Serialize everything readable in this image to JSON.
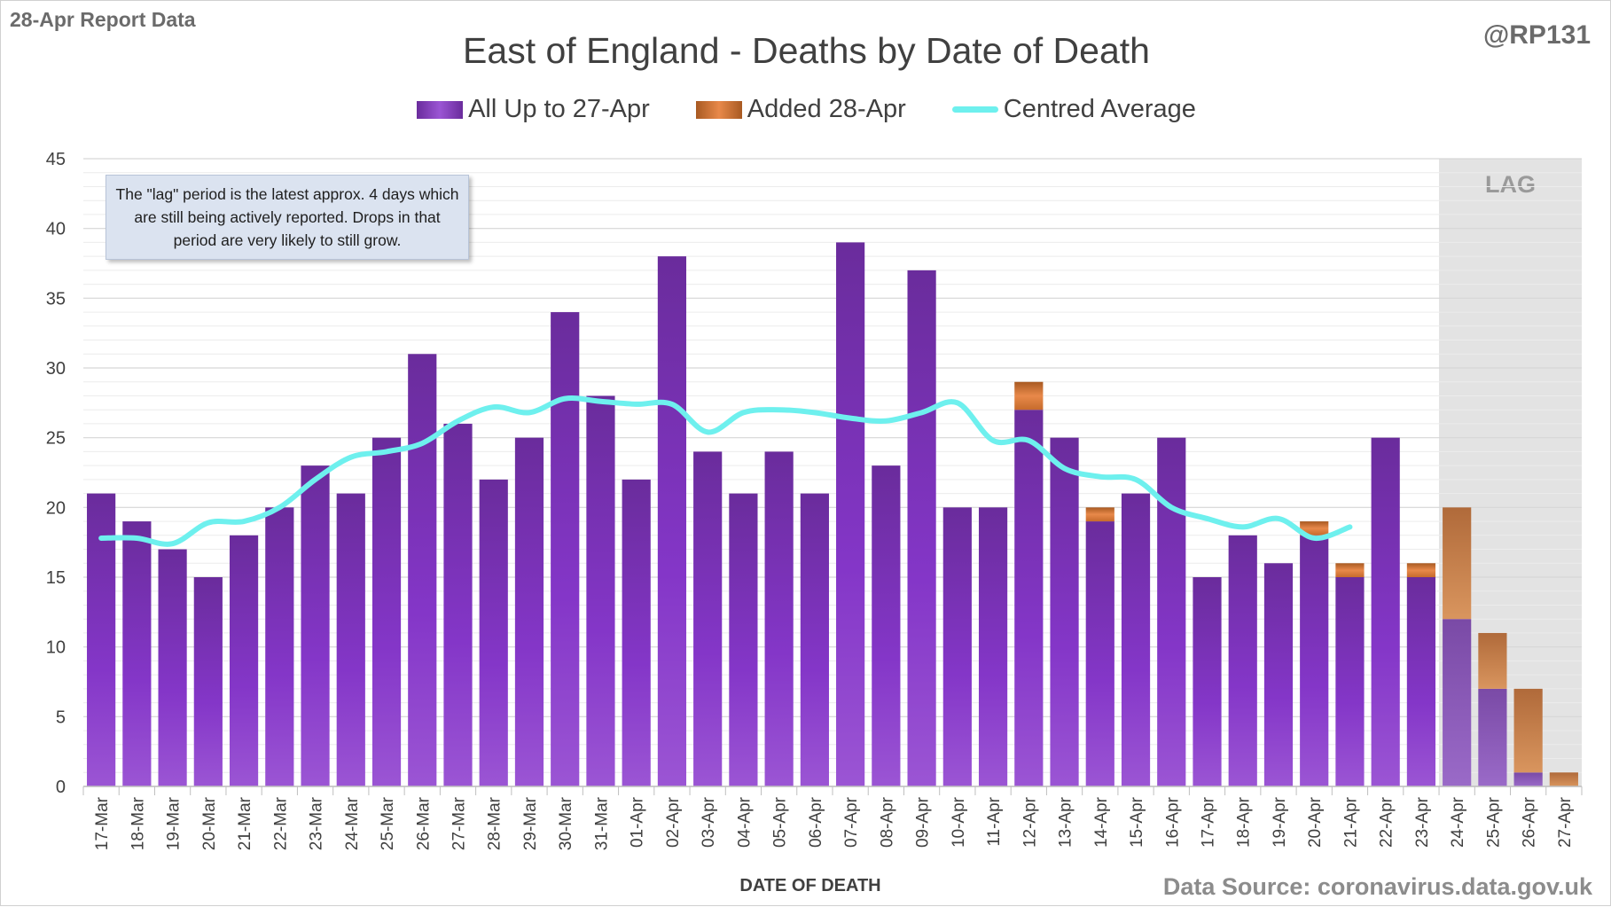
{
  "header": {
    "report_label": "28-Apr Report Data",
    "handle": "@RP131"
  },
  "footer": {
    "source": "Data Source: coronavirus.data.gov.uk"
  },
  "note": {
    "text": "The \"lag\" period is the latest approx. 4 days which are still being actively reported.  Drops in that period are very likely to still grow."
  },
  "colors": {
    "all_up_to": "#7030a0",
    "added": "#d9782c",
    "average": "#6ef0ee",
    "lag_shade": "#e3e3e3"
  },
  "chart_data": {
    "type": "bar",
    "title": "East of England - Deaths by Date of Death",
    "xlabel": "DATE OF DEATH",
    "ylabel": "",
    "ylim": [
      0,
      45
    ],
    "yticks": [
      0,
      5,
      10,
      15,
      20,
      25,
      30,
      35,
      40,
      45
    ],
    "stacked": true,
    "grid": true,
    "legend_position": "top-center",
    "lag_label": "LAG",
    "lag_categories": [
      "24-Apr",
      "25-Apr",
      "26-Apr",
      "27-Apr"
    ],
    "categories": [
      "17-Mar",
      "18-Mar",
      "19-Mar",
      "20-Mar",
      "21-Mar",
      "22-Mar",
      "23-Mar",
      "24-Mar",
      "25-Mar",
      "26-Mar",
      "27-Mar",
      "28-Mar",
      "29-Mar",
      "30-Mar",
      "31-Mar",
      "01-Apr",
      "02-Apr",
      "03-Apr",
      "04-Apr",
      "05-Apr",
      "06-Apr",
      "07-Apr",
      "08-Apr",
      "09-Apr",
      "10-Apr",
      "11-Apr",
      "12-Apr",
      "13-Apr",
      "14-Apr",
      "15-Apr",
      "16-Apr",
      "17-Apr",
      "18-Apr",
      "19-Apr",
      "20-Apr",
      "21-Apr",
      "22-Apr",
      "23-Apr",
      "24-Apr",
      "25-Apr",
      "26-Apr",
      "27-Apr"
    ],
    "series": [
      {
        "name": "All Up to 27-Apr",
        "kind": "bar",
        "values": [
          21,
          19,
          17,
          15,
          18,
          20,
          23,
          21,
          25,
          31,
          26,
          22,
          25,
          34,
          28,
          22,
          38,
          24,
          21,
          24,
          21,
          39,
          23,
          37,
          20,
          20,
          27,
          25,
          19,
          21,
          25,
          15,
          18,
          16,
          18,
          15,
          25,
          15,
          12,
          7,
          1,
          0
        ]
      },
      {
        "name": "Added 28-Apr",
        "kind": "bar",
        "values": [
          0,
          0,
          0,
          0,
          0,
          0,
          0,
          0,
          0,
          0,
          0,
          0,
          0,
          0,
          0,
          0,
          0,
          0,
          0,
          0,
          0,
          0,
          0,
          0,
          0,
          0,
          2,
          0,
          1,
          0,
          0,
          0,
          0,
          0,
          1,
          1,
          0,
          1,
          8,
          4,
          6,
          1
        ]
      },
      {
        "name": "Centred Average",
        "kind": "line",
        "values": [
          17.8,
          17.8,
          17.4,
          18.9,
          19.0,
          20.0,
          22.0,
          23.6,
          24.0,
          24.6,
          26.2,
          27.2,
          26.8,
          27.8,
          27.6,
          27.4,
          27.4,
          25.4,
          26.8,
          27.0,
          26.8,
          26.4,
          26.2,
          26.8,
          27.5,
          24.8,
          24.8,
          22.8,
          22.2,
          22.0,
          20.0,
          19.2,
          18.6,
          19.2,
          17.8,
          18.6,
          null,
          null,
          null,
          null,
          null,
          null
        ]
      }
    ]
  }
}
